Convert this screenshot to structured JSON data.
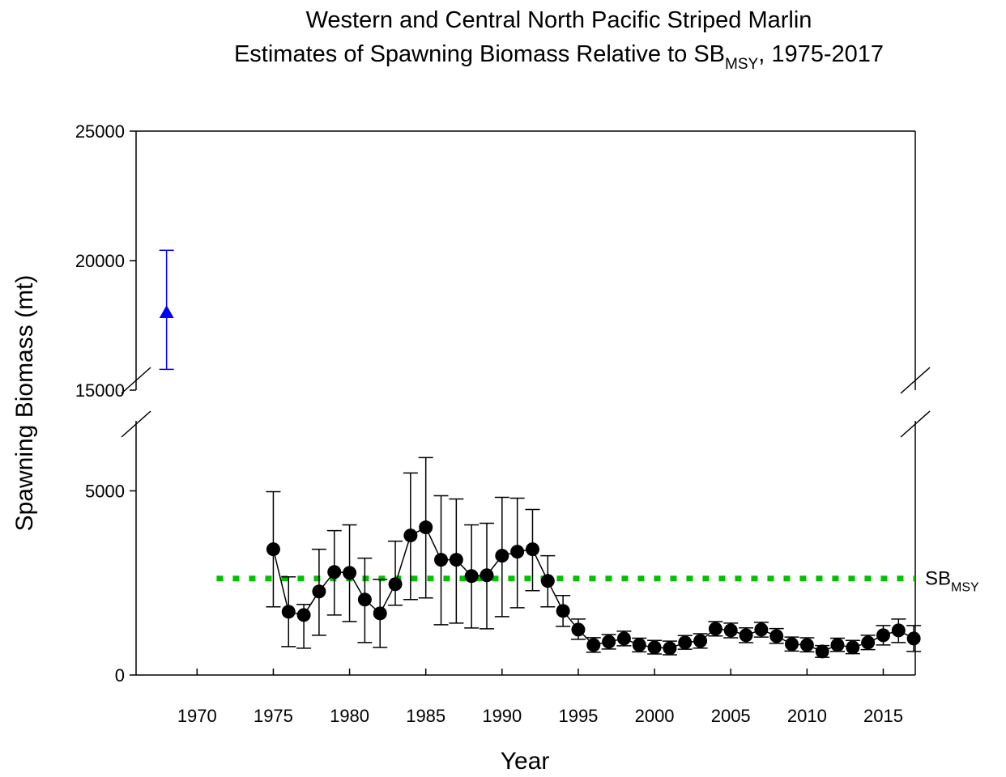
{
  "chart_data": {
    "type": "errorbar",
    "title": "Western and Central North Pacific Striped Marlin",
    "subtitle": [
      "Estimates of Spawning Biomass Relative to SB",
      "MSY",
      ", 1975-2017"
    ],
    "x_label": "Year",
    "y_label": "Spawning Biomass (mt)",
    "xlim": [
      1966,
      2017.1
    ],
    "xticks": [
      1970,
      1975,
      1980,
      1985,
      1990,
      1995,
      2000,
      2005,
      2010,
      2015
    ],
    "ylim": [
      0,
      25000
    ],
    "y_break": [
      6900,
      15000
    ],
    "yticks": [
      0,
      5000,
      15000,
      20000,
      25000
    ],
    "reference_line": {
      "value": 2621,
      "label": [
        "SB",
        "MSY"
      ],
      "color": "#00c000"
    },
    "series": [
      {
        "marker": "circle",
        "color": "#000000",
        "connected": true,
        "x": [
          1975,
          1976,
          1977,
          1978,
          1979,
          1980,
          1981,
          1982,
          1983,
          1984,
          1985,
          1986,
          1987,
          1988,
          1989,
          1990,
          1991,
          1992,
          1993,
          1994,
          1995,
          1996,
          1997,
          1998,
          1999,
          2000,
          2001,
          2002,
          2003,
          2004,
          2005,
          2006,
          2007,
          2008,
          2009,
          2010,
          2011,
          2012,
          2013,
          2014,
          2015,
          2016,
          2017
        ],
        "values": [
          3414,
          1718,
          1630,
          2269,
          2797,
          2775,
          2048,
          1674,
          2467,
          3789,
          4009,
          3128,
          3128,
          2687,
          2709,
          3238,
          3348,
          3414,
          2555,
          1740,
          1233,
          815,
          903,
          991,
          815,
          749,
          727,
          881,
          925,
          1256,
          1211,
          1079,
          1233,
          1057,
          837,
          815,
          639,
          815,
          749,
          881,
          1079,
          1211,
          991
        ],
        "lower": [
          1850,
          771,
          727,
          1079,
          1630,
          1454,
          881,
          749,
          1894,
          2048,
          2093,
          1366,
          1410,
          1278,
          1256,
          1586,
          1828,
          2291,
          1850,
          1322,
          969,
          617,
          705,
          793,
          630,
          570,
          550,
          700,
          730,
          1060,
          1010,
          880,
          1030,
          860,
          650,
          630,
          480,
          640,
          580,
          690,
          815,
          881,
          639
        ],
        "upper": [
          4978,
          2665,
          1916,
          3414,
          3920,
          4075,
          3172,
          2599,
          3634,
          5485,
          5903,
          4868,
          4780,
          4075,
          4119,
          4824,
          4802,
          4493,
          3238,
          2159,
          1520,
          1013,
          1100,
          1190,
          1000,
          940,
          920,
          1070,
          1120,
          1450,
          1410,
          1280,
          1430,
          1260,
          1030,
          1010,
          800,
          1000,
          940,
          1080,
          1344,
          1520,
          1344
        ]
      },
      {
        "marker": "triangle",
        "color": "#0000ff",
        "connected": false,
        "x": [
          1968
        ],
        "values": [
          18000
        ],
        "lower": [
          15800
        ],
        "upper": [
          20400
        ]
      }
    ]
  }
}
